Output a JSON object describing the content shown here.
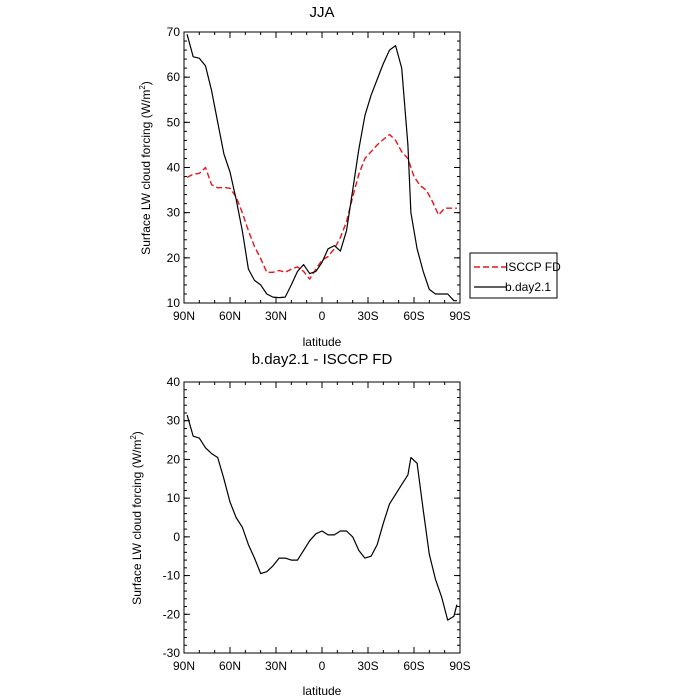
{
  "chart_data": [
    {
      "type": "line",
      "title": "JJA",
      "xlabel": "latitude",
      "ylabel": "Surface LW cloud forcing (W/m",
      "ylabel_sup": "2",
      "ylabel_close": ")",
      "xlim": [
        -90,
        90
      ],
      "ylim": [
        10,
        70
      ],
      "xticks": [
        -90,
        -60,
        -30,
        0,
        30,
        60,
        90
      ],
      "xtick_labels": [
        "90N",
        "60N",
        "30N",
        "0",
        "30S",
        "60S",
        "90S"
      ],
      "yticks": [
        10,
        20,
        30,
        40,
        50,
        60,
        70
      ],
      "ytick_labels": [
        "10",
        "20",
        "30",
        "40",
        "50",
        "60",
        "70"
      ],
      "legend": {
        "position": "right",
        "entries": [
          {
            "label": "ISCCP FD",
            "style": "dashed",
            "color": "#e8141b"
          },
          {
            "label": "b.day2.1",
            "style": "solid",
            "color": "#000000"
          }
        ]
      },
      "series": [
        {
          "name": "ISCCP FD",
          "color": "#e8141b",
          "style": "dashed",
          "x": [
            -88,
            -84,
            -80,
            -76,
            -72,
            -68,
            -64,
            -60,
            -56,
            -52,
            -48,
            -44,
            -40,
            -36,
            -32,
            -28,
            -24,
            -20,
            -16,
            -12,
            -8,
            -4,
            0,
            4,
            8,
            12,
            16,
            20,
            24,
            28,
            32,
            36,
            40,
            44,
            48,
            52,
            56,
            60,
            64,
            68,
            72,
            76,
            80,
            84,
            88
          ],
          "values": [
            37.8,
            38.5,
            38.7,
            40.0,
            36.2,
            35.5,
            35.6,
            35.4,
            33.5,
            30.0,
            26.0,
            22.5,
            19.8,
            16.8,
            16.8,
            17.2,
            16.8,
            17.5,
            18.0,
            17.0,
            15.3,
            17.5,
            19.5,
            20.3,
            22.0,
            24.5,
            28.0,
            33.5,
            38.5,
            42.0,
            43.5,
            45.0,
            46.2,
            47.3,
            46.0,
            43.5,
            42.0,
            38.0,
            36.0,
            35.0,
            32.5,
            29.5,
            31.0,
            31.0,
            31.0
          ]
        },
        {
          "name": "b.day2.1",
          "color": "#000000",
          "style": "solid",
          "x": [
            -88,
            -84,
            -80,
            -76,
            -72,
            -68,
            -64,
            -60,
            -56,
            -52,
            -48,
            -44,
            -40,
            -36,
            -32,
            -28,
            -24,
            -20,
            -16,
            -12,
            -8,
            -4,
            0,
            4,
            8,
            12,
            16,
            20,
            24,
            28,
            32,
            36,
            40,
            44,
            48,
            52,
            56,
            58,
            62,
            66,
            70,
            74,
            78,
            82,
            86,
            88
          ],
          "values": [
            69.5,
            64.5,
            64.2,
            62.5,
            57.0,
            50.0,
            43.0,
            39.0,
            33.0,
            26.0,
            17.5,
            15.0,
            14.0,
            12.0,
            11.3,
            11.2,
            11.3,
            14.0,
            17.0,
            18.5,
            16.5,
            17.0,
            19.0,
            22.0,
            22.7,
            21.5,
            26.0,
            35.0,
            44.0,
            51.5,
            56.0,
            59.5,
            63.0,
            66.0,
            67.0,
            62.0,
            45.0,
            30.0,
            22.0,
            17.0,
            13.0,
            12.0,
            12.0,
            12.0,
            10.5,
            10.5
          ]
        }
      ]
    },
    {
      "type": "line",
      "title": "b.day2.1 - ISCCP FD",
      "xlabel": "latitude",
      "ylabel": "Surface LW cloud forcing (W/m",
      "ylabel_sup": "2",
      "ylabel_close": ")",
      "xlim": [
        -90,
        90
      ],
      "ylim": [
        -30,
        40
      ],
      "xticks": [
        -90,
        -60,
        -30,
        0,
        30,
        60,
        90
      ],
      "xtick_labels": [
        "90N",
        "60N",
        "30N",
        "0",
        "30S",
        "60S",
        "90S"
      ],
      "yticks": [
        -30,
        -20,
        -10,
        0,
        10,
        20,
        30,
        40
      ],
      "ytick_labels": [
        "-30",
        "-20",
        "-10",
        "0",
        "10",
        "20",
        "30",
        "40"
      ],
      "series": [
        {
          "name": "b.day2.1 - ISCCP FD",
          "color": "#000000",
          "style": "solid",
          "x": [
            -88,
            -84,
            -80,
            -76,
            -72,
            -68,
            -64,
            -60,
            -56,
            -52,
            -48,
            -44,
            -40,
            -36,
            -32,
            -28,
            -24,
            -20,
            -16,
            -12,
            -8,
            -4,
            0,
            4,
            8,
            12,
            16,
            20,
            24,
            28,
            32,
            36,
            40,
            44,
            48,
            52,
            56,
            58,
            62,
            66,
            70,
            74,
            78,
            82,
            86,
            88
          ],
          "values": [
            31.5,
            26.0,
            25.5,
            23.0,
            21.5,
            20.5,
            15.0,
            9.0,
            5.0,
            2.5,
            -2.0,
            -5.5,
            -9.5,
            -9.0,
            -7.5,
            -5.5,
            -5.5,
            -6.0,
            -6.0,
            -3.5,
            -1.0,
            0.8,
            1.5,
            0.5,
            0.5,
            1.5,
            1.5,
            0.0,
            -3.5,
            -5.5,
            -5.0,
            -2.0,
            3.5,
            8.5,
            11.0,
            13.5,
            16.0,
            20.5,
            19.0,
            7.0,
            -4.5,
            -11.0,
            -15.5,
            -21.5,
            -20.5,
            -17.5
          ]
        }
      ]
    }
  ]
}
